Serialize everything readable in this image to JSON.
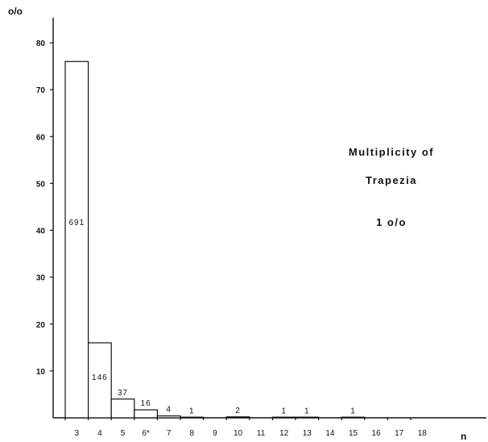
{
  "chart_data": {
    "type": "bar",
    "y_unit": "o/o",
    "x_unit": "n",
    "categories": [
      "3",
      "4",
      "5",
      "6*",
      "7",
      "8",
      "9",
      "10",
      "11",
      "12",
      "13",
      "14",
      "15",
      "16",
      "17",
      "18"
    ],
    "values": [
      76,
      16,
      4,
      1.7,
      0.4,
      0.1,
      0,
      0.2,
      0,
      0.1,
      0.1,
      0,
      0.1,
      0,
      0,
      0
    ],
    "data_labels": [
      "691",
      "146",
      "37",
      "16",
      "4",
      "1",
      "",
      "2",
      "",
      "1",
      "1",
      "",
      "1",
      "",
      "",
      ""
    ],
    "yticks": [
      "10",
      "20",
      "30",
      "40",
      "50",
      "60",
      "70",
      "80"
    ],
    "ylim": [
      0,
      80
    ],
    "annotation_lines": [
      "Multiplicity of",
      "Trapezia",
      "1 o/o"
    ]
  }
}
